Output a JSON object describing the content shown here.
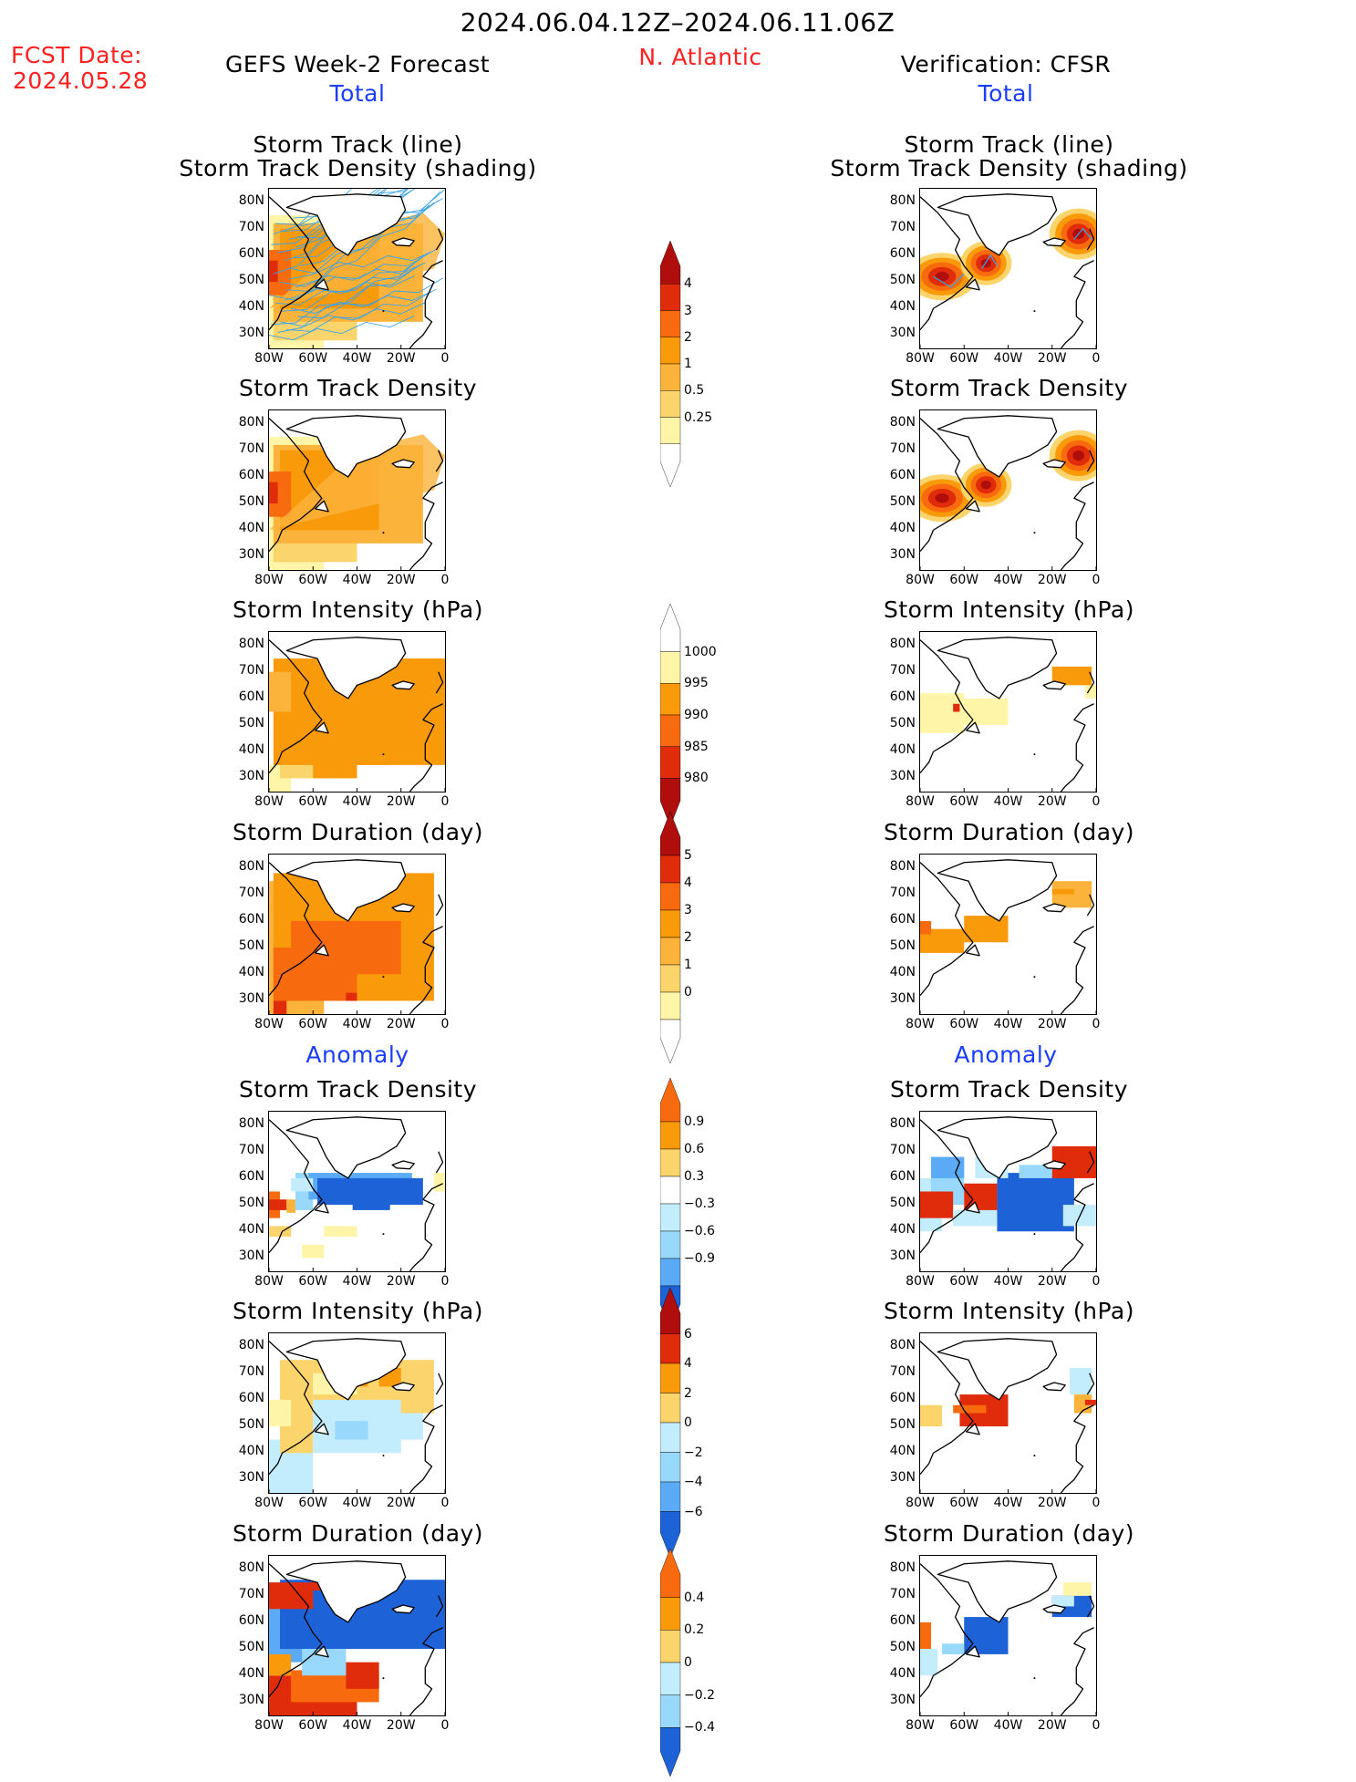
{
  "header": {
    "period": "2024.06.04.12Z–2024.06.11.06Z",
    "fcst_label": "FCST Date:",
    "fcst_date": "2024.05.28",
    "left_title": "GEFS Week-2 Forecast",
    "region": "N. Atlantic",
    "right_title": "Verification: CFSR"
  },
  "sections": {
    "total": "Total",
    "anomaly": "Anomaly"
  },
  "panel_titles": {
    "track_line1": "Storm Track (line)",
    "track_line2": "Storm Track Density (shading)",
    "density": "Storm Track Density",
    "intensity": "Storm Intensity (hPa)",
    "duration": "Storm Duration (day)"
  },
  "axes": {
    "lat_ticks": [
      "80N",
      "70N",
      "60N",
      "50N",
      "40N",
      "30N"
    ],
    "lon_ticks": [
      "80W",
      "60W",
      "40W",
      "20W",
      "0"
    ]
  },
  "colorbars": {
    "density_total": [
      "4",
      "3",
      "2",
      "1",
      "0.5",
      "0.25"
    ],
    "intensity_total": [
      "1000",
      "995",
      "990",
      "985",
      "980"
    ],
    "duration_total": [
      "5",
      "4",
      "3",
      "2",
      "1",
      "0"
    ],
    "density_anom": [
      "0.9",
      "0.6",
      "0.3",
      "−0.3",
      "−0.6",
      "−0.9"
    ],
    "intensity_anom": [
      "6",
      "4",
      "2",
      "0",
      "−2",
      "−4",
      "−6"
    ],
    "duration_anom": [
      "0.4",
      "0.2",
      "0",
      "−0.2",
      "−0.4"
    ]
  },
  "colors": {
    "c_light_yellow": "#fff5a8",
    "c_yellow": "#fcd46c",
    "c_light_orange": "#fbb33b",
    "c_orange": "#f99a0a",
    "c_dark_orange": "#f76a0e",
    "c_red": "#e02c0a",
    "c_dark_red": "#b00d0d",
    "c_pale_blue": "#c3ecfc",
    "c_light_blue": "#98d8fb",
    "c_mid_blue": "#5aaaf5",
    "c_blue": "#1d63d7",
    "track_line": "#3aa3e6"
  }
}
